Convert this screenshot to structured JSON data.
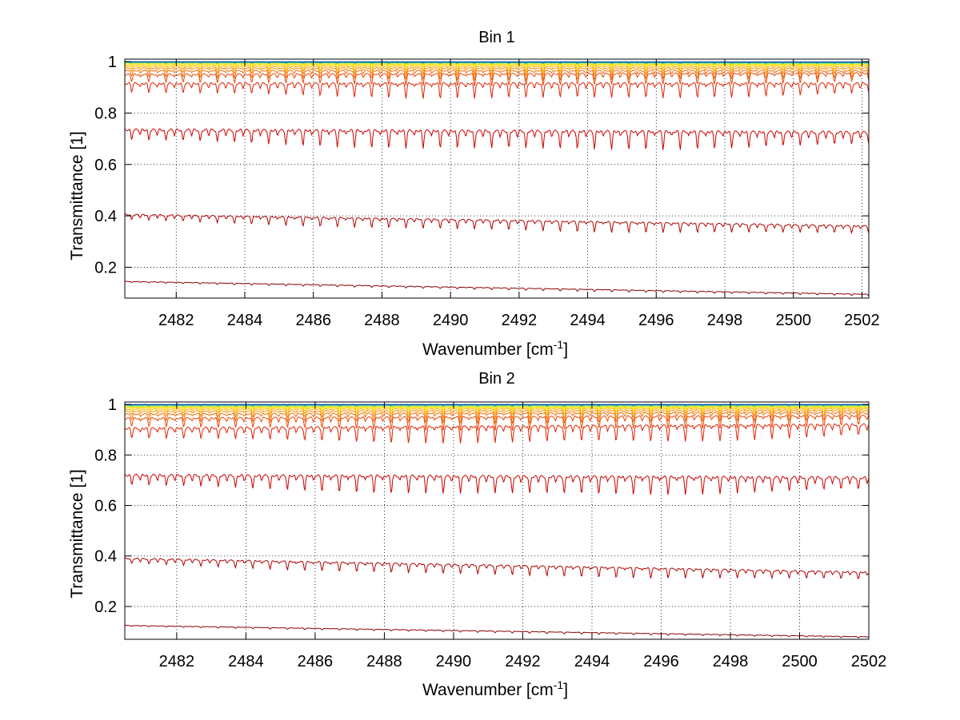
{
  "colors": {
    "background": "#ffffff",
    "axes": "#000000",
    "grid": "#000000",
    "series_palette": [
      "#8b0000",
      "#b00000",
      "#cc0000",
      "#e02000",
      "#ee4400",
      "#f46a00",
      "#f89000",
      "#fbb300",
      "#ffd200",
      "#f5e800",
      "#b8e84a",
      "#60d8a0",
      "#20b8d8",
      "#1080c0",
      "#0040a0"
    ]
  },
  "chart_data": [
    {
      "type": "line",
      "title": "Bin 1",
      "xlabel": "Wavenumber [cm",
      "xlabel_sup": "-1",
      "xlabel_end": "]",
      "ylabel": "Transmittance [1]",
      "xlim": [
        2480.5,
        2502.2
      ],
      "ylim": [
        0.08,
        1.01
      ],
      "grid": true,
      "xticks": [
        2482,
        2484,
        2486,
        2488,
        2490,
        2492,
        2494,
        2496,
        2498,
        2500,
        2502
      ],
      "xtick_labels": [
        "2482",
        "2484",
        "2486",
        "2488",
        "2490",
        "2492",
        "2494",
        "2496",
        "2498",
        "2500",
        "2502"
      ],
      "yticks": [
        0.2,
        0.4,
        0.6,
        0.8,
        1.0
      ],
      "ytick_labels": [
        "0.2",
        "0.4",
        "0.6",
        "0.8",
        "1"
      ],
      "line_spacing_cm1": 0.5,
      "series": [
        {
          "color": "#8b0000",
          "start": 0.145,
          "end": 0.095,
          "dip": 0.006
        },
        {
          "color": "#b00000",
          "start": 0.405,
          "end": 0.36,
          "dip": 0.03
        },
        {
          "color": "#cc0000",
          "start": 0.735,
          "end": 0.725,
          "dip": 0.055
        },
        {
          "color": "#e02000",
          "start": 0.915,
          "end": 0.915,
          "dip": 0.045
        },
        {
          "color": "#ee4400",
          "start": 0.95,
          "end": 0.955,
          "dip": 0.035
        },
        {
          "color": "#f46a00",
          "start": 0.965,
          "end": 0.965,
          "dip": 0.028
        },
        {
          "color": "#f89000",
          "start": 0.975,
          "end": 0.975,
          "dip": 0.02
        },
        {
          "color": "#fbb300",
          "start": 0.982,
          "end": 0.982,
          "dip": 0.015
        },
        {
          "color": "#ffd200",
          "start": 0.988,
          "end": 0.988,
          "dip": 0.01
        },
        {
          "color": "#f5e800",
          "start": 0.992,
          "end": 0.99,
          "dip": 0.006
        },
        {
          "color": "#b8e84a",
          "start": 0.995,
          "end": 0.993,
          "dip": 0.004
        },
        {
          "color": "#60d8a0",
          "start": 0.997,
          "end": 0.995,
          "dip": 0.003
        },
        {
          "color": "#20b8d8",
          "start": 0.998,
          "end": 0.997,
          "dip": 0.002
        },
        {
          "color": "#1080c0",
          "start": 0.999,
          "end": 0.998,
          "dip": 0.002
        },
        {
          "color": "#0040a0",
          "start": 1.0,
          "end": 0.999,
          "dip": 0.001
        }
      ]
    },
    {
      "type": "line",
      "title": "Bin 2",
      "xlabel": "Wavenumber [cm",
      "xlabel_sup": "-1",
      "xlabel_end": "]",
      "ylabel": "Transmittance [1]",
      "xlim": [
        2480.5,
        2502.0
      ],
      "ylim": [
        0.07,
        1.01
      ],
      "grid": true,
      "xticks": [
        2482,
        2484,
        2486,
        2488,
        2490,
        2492,
        2494,
        2496,
        2498,
        2500,
        2502
      ],
      "xtick_labels": [
        "2482",
        "2484",
        "2486",
        "2488",
        "2490",
        "2492",
        "2494",
        "2496",
        "2498",
        "2500",
        "2502"
      ],
      "yticks": [
        0.2,
        0.4,
        0.6,
        0.8,
        1.0
      ],
      "ytick_labels": [
        "0.2",
        "0.4",
        "0.6",
        "0.8",
        "1"
      ],
      "line_spacing_cm1": 0.5,
      "series": [
        {
          "color": "#8b0000",
          "start": 0.125,
          "end": 0.08,
          "dip": 0.005
        },
        {
          "color": "#b00000",
          "start": 0.39,
          "end": 0.335,
          "dip": 0.03
        },
        {
          "color": "#cc0000",
          "start": 0.72,
          "end": 0.71,
          "dip": 0.055
        },
        {
          "color": "#e02000",
          "start": 0.905,
          "end": 0.92,
          "dip": 0.05
        },
        {
          "color": "#ee4400",
          "start": 0.945,
          "end": 0.955,
          "dip": 0.04
        },
        {
          "color": "#f46a00",
          "start": 0.962,
          "end": 0.968,
          "dip": 0.03
        },
        {
          "color": "#f89000",
          "start": 0.973,
          "end": 0.977,
          "dip": 0.022
        },
        {
          "color": "#fbb300",
          "start": 0.981,
          "end": 0.984,
          "dip": 0.016
        },
        {
          "color": "#ffd200",
          "start": 0.987,
          "end": 0.989,
          "dip": 0.011
        },
        {
          "color": "#f5e800",
          "start": 0.991,
          "end": 0.992,
          "dip": 0.007
        },
        {
          "color": "#b8e84a",
          "start": 0.994,
          "end": 0.995,
          "dip": 0.005
        },
        {
          "color": "#60d8a0",
          "start": 0.996,
          "end": 0.997,
          "dip": 0.003
        },
        {
          "color": "#20b8d8",
          "start": 0.998,
          "end": 0.998,
          "dip": 0.002
        },
        {
          "color": "#1080c0",
          "start": 0.999,
          "end": 0.999,
          "dip": 0.002
        },
        {
          "color": "#0040a0",
          "start": 1.0,
          "end": 1.0,
          "dip": 0.001
        }
      ]
    }
  ]
}
